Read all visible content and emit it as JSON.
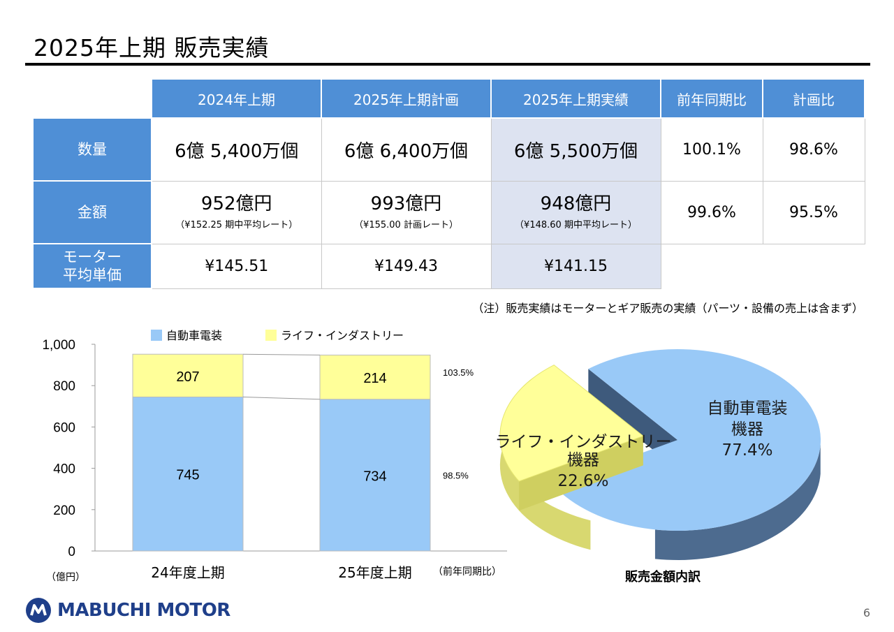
{
  "title": "2025年上期 販売実績",
  "table": {
    "headers": [
      "2024年上期",
      "2025年上期計画",
      "2025年上期実績",
      "前年同期比",
      "計画比"
    ],
    "rows": {
      "quantity": {
        "label": "数量",
        "values": [
          "6億 5,400万個",
          "6億 6,400万個",
          "6億 5,500万個",
          "100.1%",
          "98.6%"
        ]
      },
      "amount": {
        "label": "金額",
        "values": [
          "952億円",
          "993億円",
          "948億円",
          "99.6%",
          "95.5%"
        ],
        "rates": [
          "（¥152.25 期中平均レート）",
          "（¥155.00 計画レート）",
          "（¥148.60 期中平均レート）"
        ]
      },
      "unit_price": {
        "label_line1": "モーター",
        "label_line2": "平均単価",
        "values": [
          "¥145.51",
          "¥149.43",
          "¥141.15"
        ]
      }
    }
  },
  "note": "（注）販売実績はモーターとギア販売の実績（パーツ・設備の売上は含まず）",
  "chart_data": [
    {
      "type": "bar",
      "stacked": true,
      "categories": [
        "24年度上期",
        "25年度上期"
      ],
      "series": [
        {
          "name": "自動車電装",
          "values": [
            745,
            734
          ],
          "color": "#99c9f7"
        },
        {
          "name": "ライフ・インダストリー",
          "values": [
            207,
            214
          ],
          "color": "#ffff99"
        }
      ],
      "yticks": [
        "0",
        "200",
        "400",
        "600",
        "800",
        "1,000"
      ],
      "ylim": [
        0,
        1000
      ],
      "unit": "（億円）",
      "ratio_header": "（前年同期比）",
      "ratios": [
        "98.5%",
        "103.5%"
      ],
      "legend_position": "top"
    },
    {
      "type": "pie",
      "title": "販売金額内訳",
      "slices": [
        {
          "label_line1": "自動車電装",
          "label_line2": "機器",
          "value": 77.4,
          "pct": "77.4%",
          "color": "#99c9f7"
        },
        {
          "label_line1": "ライフ・インダストリー",
          "label_line2": "機器",
          "value": 22.6,
          "pct": "22.6%",
          "color": "#ffff99"
        }
      ]
    }
  ],
  "footer": {
    "logo": "MABUCHI MOTOR",
    "page": "6"
  }
}
